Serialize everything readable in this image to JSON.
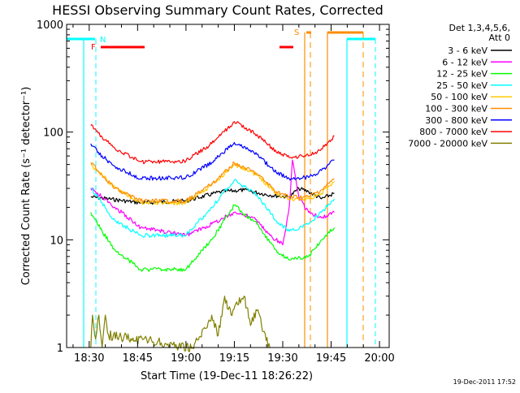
{
  "chart_data": {
    "type": "line",
    "title": "HESSI Observing Summary Count Rates, Corrected",
    "xlabel": "Start Time (19-Dec-11 18:26:22)",
    "ylabel": "Corrected Count Rate (s⁻¹ detector⁻¹)",
    "y_scale": "log",
    "ylim": [
      1,
      1000
    ],
    "xlim_minutes_since_start": [
      -3,
      97
    ],
    "x_ticks": [
      {
        "label": "18:30",
        "minutes": 4
      },
      {
        "label": "18:45",
        "minutes": 19
      },
      {
        "label": "19:00",
        "minutes": 34
      },
      {
        "label": "19:15",
        "minutes": 49
      },
      {
        "label": "19:30",
        "minutes": 64
      },
      {
        "label": "19:45",
        "minutes": 79
      },
      {
        "label": "20:00",
        "minutes": 94
      }
    ],
    "y_ticks": [
      {
        "label": "1",
        "value": 1
      },
      {
        "label": "10",
        "value": 10
      },
      {
        "label": "100",
        "value": 100
      },
      {
        "label": "1000",
        "value": 1000
      }
    ],
    "legend": {
      "title_lines": [
        "Det 1,3,4,5,6,",
        "Att 0"
      ],
      "placement": "right"
    },
    "series": [
      {
        "name": "3 - 6 keV",
        "color": "#000000",
        "x": [
          4.5,
          10,
          20,
          34,
          45,
          52,
          60,
          66,
          69,
          72,
          76,
          80
        ],
        "y": [
          25,
          24,
          22,
          23,
          28,
          29,
          26,
          25,
          30,
          28,
          24,
          27
        ]
      },
      {
        "name": "6 - 12 keV",
        "color": "#ff00ff",
        "x": [
          4.5,
          8,
          12,
          20,
          34,
          42,
          49,
          55,
          60,
          64,
          66,
          67,
          69,
          72,
          76,
          80
        ],
        "y": [
          30,
          25,
          20,
          13,
          11,
          14,
          18,
          16,
          11,
          9,
          20,
          55,
          25,
          18,
          16,
          18
        ]
      },
      {
        "name": "12 - 25 keV",
        "color": "#00ff00",
        "x": [
          4.5,
          8,
          12,
          20,
          34,
          42,
          49,
          56,
          62,
          66,
          72,
          76,
          80
        ],
        "y": [
          18,
          12,
          8,
          5.3,
          5.3,
          10,
          21,
          14,
          8,
          6.5,
          7,
          10,
          13
        ]
      },
      {
        "name": "25 - 50 keV",
        "color": "#00ffff",
        "x": [
          4.5,
          8,
          12,
          20,
          34,
          42,
          49,
          56,
          62,
          66,
          72,
          76,
          80
        ],
        "y": [
          30,
          22,
          15,
          11,
          11,
          20,
          36,
          26,
          15,
          12,
          14,
          18,
          24
        ]
      },
      {
        "name": "50 - 100 keV",
        "color": "#ffc800",
        "x": [
          4.5,
          8,
          12,
          20,
          34,
          42,
          49,
          56,
          62,
          66,
          72,
          76,
          80
        ],
        "y": [
          50,
          40,
          30,
          22,
          22,
          32,
          50,
          40,
          27,
          24,
          24,
          27,
          35
        ]
      },
      {
        "name": "100 - 300 keV",
        "color": "#ff8c00",
        "x": [
          4.5,
          8,
          12,
          20,
          34,
          42,
          49,
          56,
          62,
          66,
          72,
          76,
          80
        ],
        "y": [
          52,
          40,
          30,
          23,
          23,
          33,
          52,
          41,
          28,
          25,
          25,
          29,
          37
        ]
      },
      {
        "name": "300 - 800 keV",
        "color": "#0000ff",
        "x": [
          4.5,
          8,
          12,
          20,
          34,
          42,
          49,
          56,
          62,
          66,
          72,
          76,
          80
        ],
        "y": [
          78,
          60,
          48,
          37,
          38,
          52,
          80,
          62,
          42,
          37,
          38,
          44,
          55
        ]
      },
      {
        "name": "800 - 7000 keV",
        "color": "#ff0000",
        "x": [
          4.5,
          8,
          12,
          20,
          34,
          42,
          49,
          56,
          62,
          66,
          72,
          76,
          80
        ],
        "y": [
          115,
          90,
          70,
          53,
          54,
          78,
          125,
          95,
          65,
          58,
          60,
          70,
          92
        ]
      },
      {
        "name": "7000 - 20000 keV",
        "color": "#808000",
        "x": [
          4.5,
          5,
          6,
          7,
          8,
          9,
          10,
          36,
          40,
          42,
          44,
          46,
          48,
          50,
          52,
          54,
          56,
          58,
          60
        ],
        "y": [
          1,
          2,
          1.2,
          2,
          1,
          2,
          1.3,
          1,
          1.5,
          2,
          1.3,
          3,
          2,
          2.5,
          3,
          1.6,
          2.2,
          1.4,
          1
        ]
      }
    ],
    "annotations": [
      {
        "text": "N",
        "color": "#00ffff"
      },
      {
        "text": "F",
        "color": "#ff0000"
      },
      {
        "text": "S",
        "color": "#ff8c00"
      }
    ],
    "timestamp": "19-Dec-2011 17:52"
  }
}
